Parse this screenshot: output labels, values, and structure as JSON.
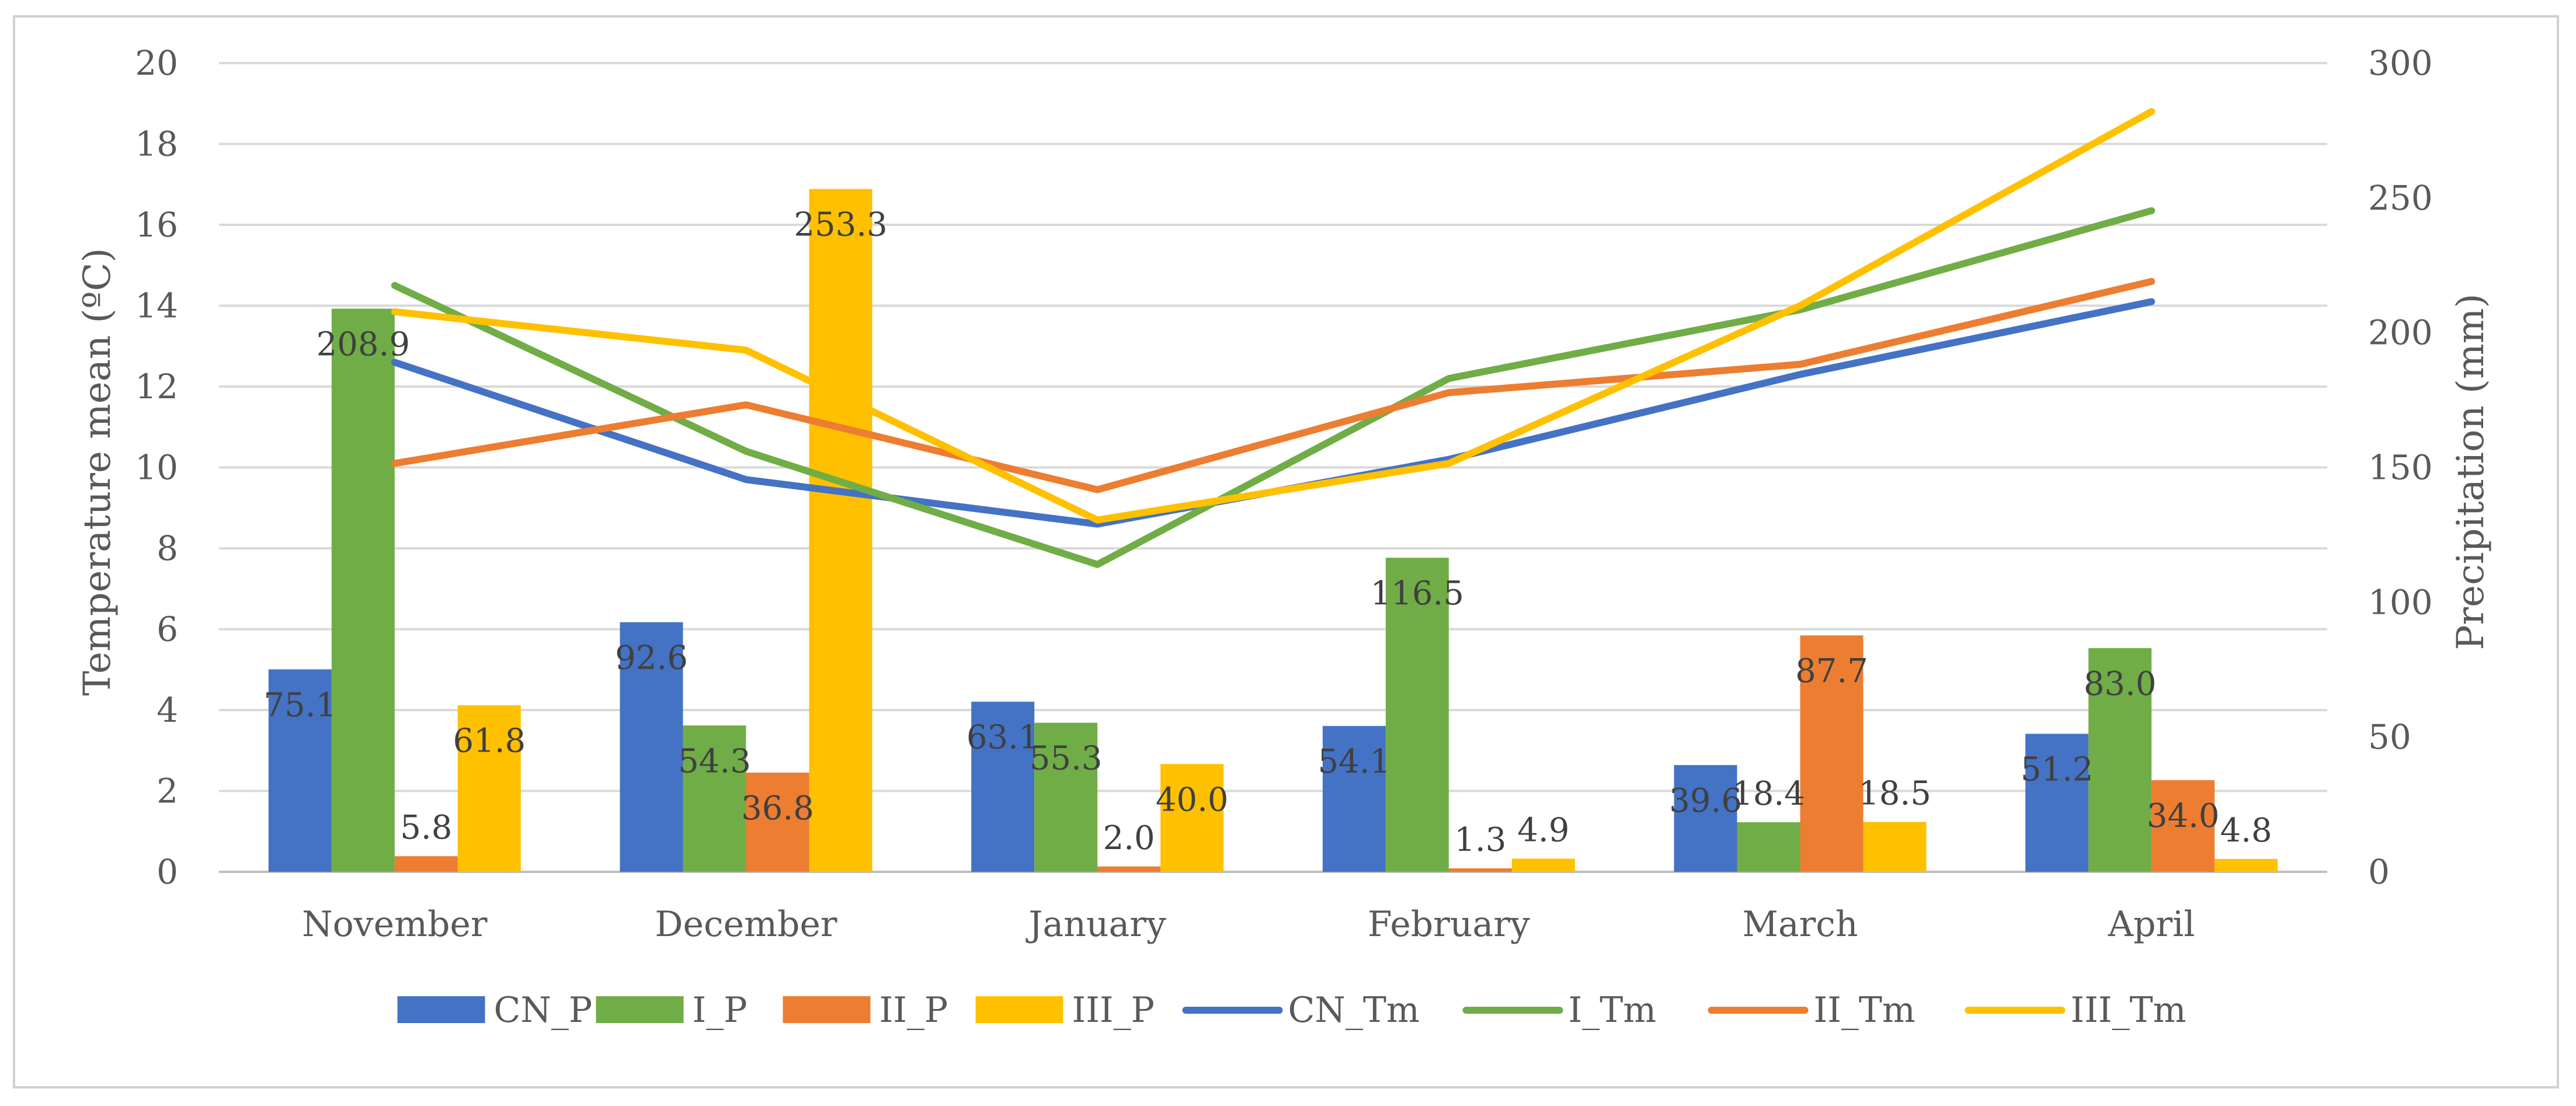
{
  "chart_data": {
    "type": "bar+line",
    "categories": [
      "November",
      "December",
      "January",
      "February",
      "March",
      "April"
    ],
    "bar_series": [
      {
        "name": "CN_P",
        "color": "#4472C4",
        "values": [
          75.1,
          92.6,
          63.1,
          54.1,
          39.6,
          51.2
        ],
        "labels": [
          "75.1",
          "92.6",
          "63.1",
          "54.1",
          "39.6",
          "51.2"
        ]
      },
      {
        "name": "I_P",
        "color": "#70AD47",
        "values": [
          208.9,
          54.3,
          55.3,
          116.5,
          18.4,
          83.0
        ],
        "labels": [
          "208.9",
          "54.3",
          "55.3",
          "116.5",
          "18.4",
          "83.0"
        ]
      },
      {
        "name": "II_P",
        "color": "#ED7D31",
        "values": [
          5.8,
          36.8,
          2.0,
          1.3,
          87.7,
          34.0
        ],
        "labels": [
          "5.8",
          "36.8",
          "2.0",
          "1.3",
          "87.7",
          "34.0"
        ]
      },
      {
        "name": "III_P",
        "color": "#FFC000",
        "values": [
          61.8,
          253.3,
          40.0,
          4.9,
          18.5,
          4.8
        ],
        "labels": [
          "61.8",
          "253.3",
          "40.0",
          "4.9",
          "18.5",
          "4.8"
        ]
      }
    ],
    "line_series": [
      {
        "name": "CN_Tm",
        "color": "#4472C4",
        "values": [
          12.6,
          9.7,
          8.6,
          10.2,
          12.3,
          14.1
        ]
      },
      {
        "name": "I_Tm",
        "color": "#70AD47",
        "values": [
          14.5,
          10.4,
          7.6,
          12.2,
          13.9,
          16.35
        ]
      },
      {
        "name": "II_Tm",
        "color": "#ED7D31",
        "values": [
          10.1,
          11.55,
          9.45,
          11.85,
          12.55,
          14.6
        ]
      },
      {
        "name": "III_Tm",
        "color": "#FFC000",
        "values": [
          13.85,
          12.9,
          8.7,
          10.1,
          14.0,
          18.8
        ]
      }
    ],
    "ylabel": "Temperature mean (ºC)",
    "y2label": "Precipitation (mm)",
    "ylim": [
      0,
      20
    ],
    "y2lim": [
      0,
      300
    ],
    "yticks": [
      "0",
      "2",
      "4",
      "6",
      "8",
      "10",
      "12",
      "14",
      "16",
      "18",
      "20"
    ],
    "y2ticks": [
      "0",
      "50",
      "100",
      "150",
      "200",
      "250",
      "300"
    ],
    "legend": [
      "CN_P",
      "I_P",
      "II_P",
      "III_P",
      "CN_Tm",
      "I_Tm",
      "II_Tm",
      "III_Tm"
    ],
    "legend_position": "bottom",
    "grid": true
  }
}
